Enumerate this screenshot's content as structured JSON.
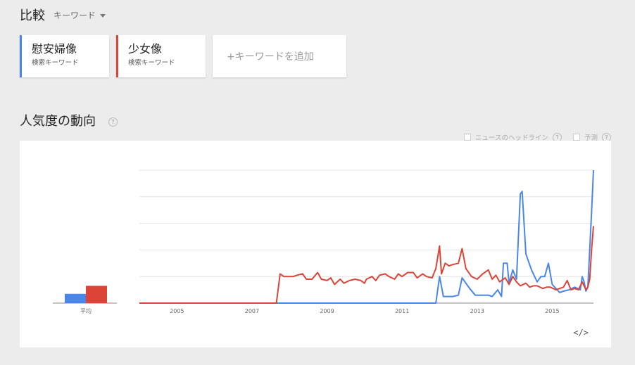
{
  "header": {
    "title": "比較",
    "keyword_dropdown": "キーワード"
  },
  "cards": [
    {
      "name": "慰安婦像",
      "sub": "検索キーワード",
      "color": "#4a86e8"
    },
    {
      "name": "少女像",
      "sub": "検索キーワード",
      "color": "#db4437"
    }
  ],
  "add_keyword": "+キーワードを追加",
  "section": {
    "title": "人気度の動向",
    "help": "?"
  },
  "options": {
    "headlines": "ニュースのヘッドライン",
    "forecast": "予測",
    "help": "?"
  },
  "embed_icon": "</>",
  "chart_data": {
    "type": "line",
    "average_bar": {
      "label": "平均",
      "values": [
        7,
        13
      ]
    },
    "x_ticks": [
      "2005",
      "2007",
      "2009",
      "2011",
      "2013",
      "2015"
    ],
    "ylim": [
      0,
      100
    ],
    "grid": true,
    "colors": [
      "#4a86e8",
      "#db4437"
    ],
    "series": [
      {
        "name": "慰安婦像",
        "points": [
          [
            2004.0,
            0
          ],
          [
            2011.9,
            0
          ],
          [
            2012.0,
            20
          ],
          [
            2012.1,
            5
          ],
          [
            2012.35,
            5
          ],
          [
            2012.5,
            6
          ],
          [
            2012.6,
            19
          ],
          [
            2012.8,
            11
          ],
          [
            2012.95,
            6
          ],
          [
            2013.3,
            6
          ],
          [
            2013.4,
            5
          ],
          [
            2013.55,
            10
          ],
          [
            2013.65,
            5
          ],
          [
            2013.7,
            30
          ],
          [
            2013.8,
            30
          ],
          [
            2013.85,
            15
          ],
          [
            2013.95,
            25
          ],
          [
            2014.05,
            18
          ],
          [
            2014.15,
            82
          ],
          [
            2014.2,
            84
          ],
          [
            2014.3,
            37
          ],
          [
            2014.45,
            25
          ],
          [
            2014.6,
            16
          ],
          [
            2014.7,
            20
          ],
          [
            2014.8,
            20
          ],
          [
            2014.9,
            30
          ],
          [
            2015.0,
            14
          ],
          [
            2015.1,
            11
          ],
          [
            2015.2,
            8
          ],
          [
            2015.3,
            9
          ],
          [
            2015.45,
            10
          ],
          [
            2015.6,
            12
          ],
          [
            2015.75,
            10
          ],
          [
            2015.8,
            20
          ],
          [
            2015.85,
            16
          ],
          [
            2015.9,
            9
          ],
          [
            2015.95,
            12
          ],
          [
            2016.05,
            68
          ],
          [
            2016.1,
            100
          ]
        ]
      },
      {
        "name": "少女像",
        "points": [
          [
            2004.0,
            0
          ],
          [
            2007.65,
            0
          ],
          [
            2007.75,
            22
          ],
          [
            2007.85,
            20
          ],
          [
            2008.1,
            20
          ],
          [
            2008.2,
            21
          ],
          [
            2008.35,
            22
          ],
          [
            2008.45,
            18
          ],
          [
            2008.6,
            18
          ],
          [
            2008.75,
            23
          ],
          [
            2008.85,
            18
          ],
          [
            2009.0,
            17
          ],
          [
            2009.1,
            19
          ],
          [
            2009.2,
            14
          ],
          [
            2009.35,
            18
          ],
          [
            2009.45,
            15
          ],
          [
            2009.6,
            17
          ],
          [
            2009.75,
            18
          ],
          [
            2009.9,
            17
          ],
          [
            2010.0,
            15
          ],
          [
            2010.05,
            18
          ],
          [
            2010.2,
            20
          ],
          [
            2010.3,
            17
          ],
          [
            2010.4,
            21
          ],
          [
            2010.55,
            22
          ],
          [
            2010.65,
            20
          ],
          [
            2010.8,
            18
          ],
          [
            2010.9,
            22
          ],
          [
            2011.0,
            20
          ],
          [
            2011.15,
            23
          ],
          [
            2011.3,
            23
          ],
          [
            2011.4,
            19
          ],
          [
            2011.55,
            22
          ],
          [
            2011.65,
            20
          ],
          [
            2011.8,
            19
          ],
          [
            2011.9,
            26
          ],
          [
            2012.0,
            43
          ],
          [
            2012.05,
            22
          ],
          [
            2012.15,
            30
          ],
          [
            2012.25,
            28
          ],
          [
            2012.35,
            29
          ],
          [
            2012.5,
            30
          ],
          [
            2012.6,
            41
          ],
          [
            2012.7,
            26
          ],
          [
            2012.85,
            20
          ],
          [
            2013.0,
            18
          ],
          [
            2013.15,
            22
          ],
          [
            2013.3,
            25
          ],
          [
            2013.4,
            18
          ],
          [
            2013.5,
            21
          ],
          [
            2013.6,
            16
          ],
          [
            2013.75,
            19
          ],
          [
            2013.85,
            14
          ],
          [
            2013.95,
            20
          ],
          [
            2014.05,
            16
          ],
          [
            2014.15,
            13
          ],
          [
            2014.3,
            15
          ],
          [
            2014.4,
            12
          ],
          [
            2014.5,
            13
          ],
          [
            2014.6,
            13
          ],
          [
            2014.75,
            11
          ],
          [
            2014.85,
            12
          ],
          [
            2014.95,
            12
          ],
          [
            2015.1,
            10
          ],
          [
            2015.2,
            11
          ],
          [
            2015.3,
            12
          ],
          [
            2015.4,
            17
          ],
          [
            2015.5,
            10
          ],
          [
            2015.6,
            11
          ],
          [
            2015.7,
            10
          ],
          [
            2015.8,
            16
          ],
          [
            2015.9,
            10
          ],
          [
            2015.95,
            12
          ],
          [
            2016.0,
            18
          ],
          [
            2016.05,
            40
          ],
          [
            2016.1,
            58
          ]
        ]
      }
    ]
  }
}
